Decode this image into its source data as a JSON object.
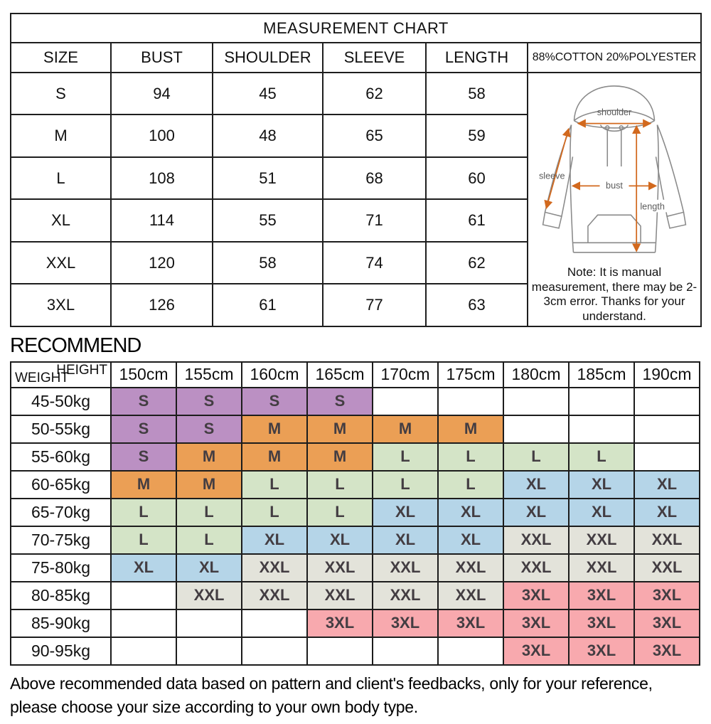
{
  "measurement_chart": {
    "title": "MEASUREMENT CHART",
    "columns": [
      "SIZE",
      "BUST",
      "SHOULDER",
      "SLEEVE",
      "LENGTH"
    ],
    "material": "88%COTTON 20%POLYESTER",
    "rows": [
      {
        "size": "S",
        "bust": "94",
        "shoulder": "45",
        "sleeve": "62",
        "length": "58"
      },
      {
        "size": "M",
        "bust": "100",
        "shoulder": "48",
        "sleeve": "65",
        "length": "59"
      },
      {
        "size": "L",
        "bust": "108",
        "shoulder": "51",
        "sleeve": "68",
        "length": "60"
      },
      {
        "size": "XL",
        "bust": "114",
        "shoulder": "55",
        "sleeve": "71",
        "length": "61"
      },
      {
        "size": "XXL",
        "bust": "120",
        "shoulder": "58",
        "sleeve": "74",
        "length": "62"
      },
      {
        "size": "3XL",
        "bust": "126",
        "shoulder": "61",
        "sleeve": "77",
        "length": "63"
      }
    ],
    "diagram_labels": {
      "shoulder": "shoulder",
      "sleeve": "sleeve",
      "bust": "bust",
      "length": "length"
    },
    "note": "Note: It is manual measurement, there may be 2-3cm error. Thanks for your understand."
  },
  "recommend": {
    "heading": "RECOMMEND",
    "corner": {
      "top": "HEIGHT",
      "bottom": "WEIGHT"
    },
    "heights": [
      "150cm",
      "155cm",
      "160cm",
      "165cm",
      "170cm",
      "175cm",
      "180cm",
      "185cm",
      "190cm"
    ],
    "rows": [
      {
        "weight": "45-50kg",
        "cells": [
          "S",
          "S",
          "S",
          "S",
          "",
          "",
          "",
          "",
          ""
        ]
      },
      {
        "weight": "50-55kg",
        "cells": [
          "S",
          "S",
          "M",
          "M",
          "M",
          "M",
          "",
          "",
          ""
        ]
      },
      {
        "weight": "55-60kg",
        "cells": [
          "S",
          "M",
          "M",
          "M",
          "L",
          "L",
          "L",
          "L",
          ""
        ]
      },
      {
        "weight": "60-65kg",
        "cells": [
          "M",
          "M",
          "L",
          "L",
          "L",
          "L",
          "XL",
          "XL",
          "XL"
        ]
      },
      {
        "weight": "65-70kg",
        "cells": [
          "L",
          "L",
          "L",
          "L",
          "XL",
          "XL",
          "XL",
          "XL",
          "XL"
        ]
      },
      {
        "weight": "70-75kg",
        "cells": [
          "L",
          "L",
          "XL",
          "XL",
          "XL",
          "XL",
          "XXL",
          "XXL",
          "XXL"
        ]
      },
      {
        "weight": "75-80kg",
        "cells": [
          "XL",
          "XL",
          "XXL",
          "XXL",
          "XXL",
          "XXL",
          "XXL",
          "XXL",
          "XXL"
        ]
      },
      {
        "weight": "80-85kg",
        "cells": [
          "",
          "XXL",
          "XXL",
          "XXL",
          "XXL",
          "XXL",
          "3XL",
          "3XL",
          "3XL"
        ]
      },
      {
        "weight": "85-90kg",
        "cells": [
          "",
          "",
          "",
          "3XL",
          "3XL",
          "3XL",
          "3XL",
          "3XL",
          "3XL"
        ]
      },
      {
        "weight": "90-95kg",
        "cells": [
          "",
          "",
          "",
          "",
          "",
          "",
          "3XL",
          "3XL",
          "3XL"
        ]
      }
    ],
    "size_colors": {
      "S": "#bb90c3",
      "M": "#eb9f55",
      "L": "#d4e4c7",
      "XL": "#b5d5e8",
      "XXL": "#e3e3da",
      "3XL": "#f8a9ae"
    },
    "arrow_color": "#d2691e"
  },
  "footer": {
    "line1": "Above recommended data based on pattern and client's feedbacks, only for your reference,",
    "line2": "please choose your size according to your own body type."
  }
}
